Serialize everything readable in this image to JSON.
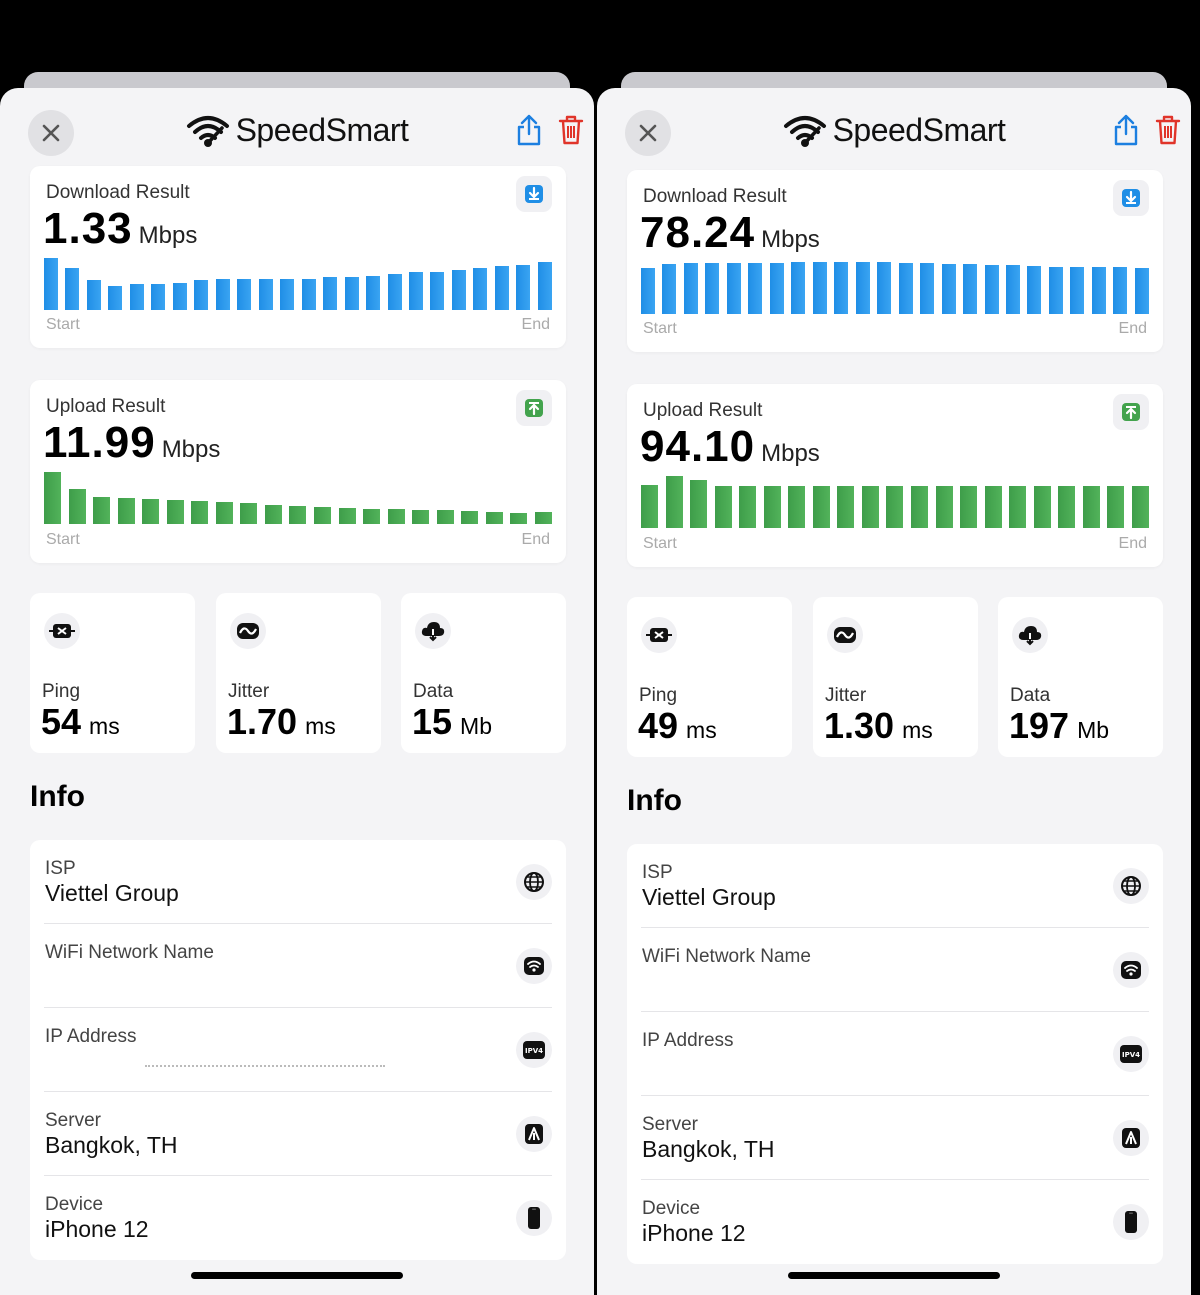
{
  "app": {
    "brand": "SpeedSmart"
  },
  "panels": [
    {
      "download": {
        "label": "Download Result",
        "value": "1.33",
        "unit": "Mbps",
        "bar_levels": [
          1.0,
          0.8,
          0.58,
          0.46,
          0.5,
          0.5,
          0.52,
          0.58,
          0.6,
          0.6,
          0.6,
          0.6,
          0.6,
          0.64,
          0.64,
          0.66,
          0.7,
          0.74,
          0.74,
          0.76,
          0.8,
          0.84,
          0.86,
          0.92
        ]
      },
      "upload": {
        "label": "Upload Result",
        "value": "11.99",
        "unit": "Mbps",
        "bar_levels": [
          1.0,
          0.68,
          0.52,
          0.5,
          0.48,
          0.46,
          0.44,
          0.42,
          0.4,
          0.36,
          0.34,
          0.32,
          0.3,
          0.28,
          0.28,
          0.26,
          0.26,
          0.25,
          0.24,
          0.22,
          0.24
        ]
      },
      "axis": {
        "start": "Start",
        "end": "End"
      },
      "metrics": [
        {
          "label": "Ping",
          "value": "54",
          "unit": "ms",
          "icon": "ping-icon"
        },
        {
          "label": "Jitter",
          "value": "1.70",
          "unit": "ms",
          "icon": "jitter-icon"
        },
        {
          "label": "Data",
          "value": "15",
          "unit": "Mb",
          "icon": "cloud-download-icon"
        }
      ],
      "info": {
        "title": "Info",
        "rows": [
          {
            "label": "ISP",
            "value": "Viettel Group",
            "icon": "globe-icon"
          },
          {
            "label": "WiFi Network Name",
            "value": "",
            "icon": "wifi-icon"
          },
          {
            "label": "IP Address",
            "value": "",
            "icon": "ipv4-icon"
          },
          {
            "label": "Server",
            "value": "Bangkok, TH",
            "icon": "server-icon"
          },
          {
            "label": "Device",
            "value": "iPhone 12",
            "icon": "phone-icon"
          }
        ]
      }
    },
    {
      "download": {
        "label": "Download Result",
        "value": "78.24",
        "unit": "Mbps",
        "bar_levels": [
          0.88,
          0.96,
          0.98,
          0.98,
          0.98,
          0.98,
          0.98,
          1.0,
          1.0,
          1.0,
          1.0,
          1.0,
          0.98,
          0.98,
          0.96,
          0.96,
          0.95,
          0.94,
          0.92,
          0.9,
          0.9,
          0.9,
          0.9,
          0.88
        ]
      },
      "upload": {
        "label": "Upload Result",
        "value": "94.10",
        "unit": "Mbps",
        "bar_levels": [
          0.82,
          1.0,
          0.92,
          0.8,
          0.8,
          0.8,
          0.8,
          0.8,
          0.8,
          0.8,
          0.8,
          0.8,
          0.8,
          0.8,
          0.8,
          0.8,
          0.8,
          0.8,
          0.8,
          0.8,
          0.8
        ]
      },
      "axis": {
        "start": "Start",
        "end": "End"
      },
      "metrics": [
        {
          "label": "Ping",
          "value": "49",
          "unit": "ms",
          "icon": "ping-icon"
        },
        {
          "label": "Jitter",
          "value": "1.30",
          "unit": "ms",
          "icon": "jitter-icon"
        },
        {
          "label": "Data",
          "value": "197",
          "unit": "Mb",
          "icon": "cloud-download-icon"
        }
      ],
      "info": {
        "title": "Info",
        "rows": [
          {
            "label": "ISP",
            "value": "Viettel Group",
            "icon": "globe-icon"
          },
          {
            "label": "WiFi Network Name",
            "value": "",
            "icon": "wifi-icon"
          },
          {
            "label": "IP Address",
            "value": "",
            "icon": "ipv4-icon"
          },
          {
            "label": "Server",
            "value": "Bangkok, TH",
            "icon": "server-icon"
          },
          {
            "label": "Device",
            "value": "iPhone 12",
            "icon": "phone-icon"
          }
        ]
      }
    }
  ]
}
